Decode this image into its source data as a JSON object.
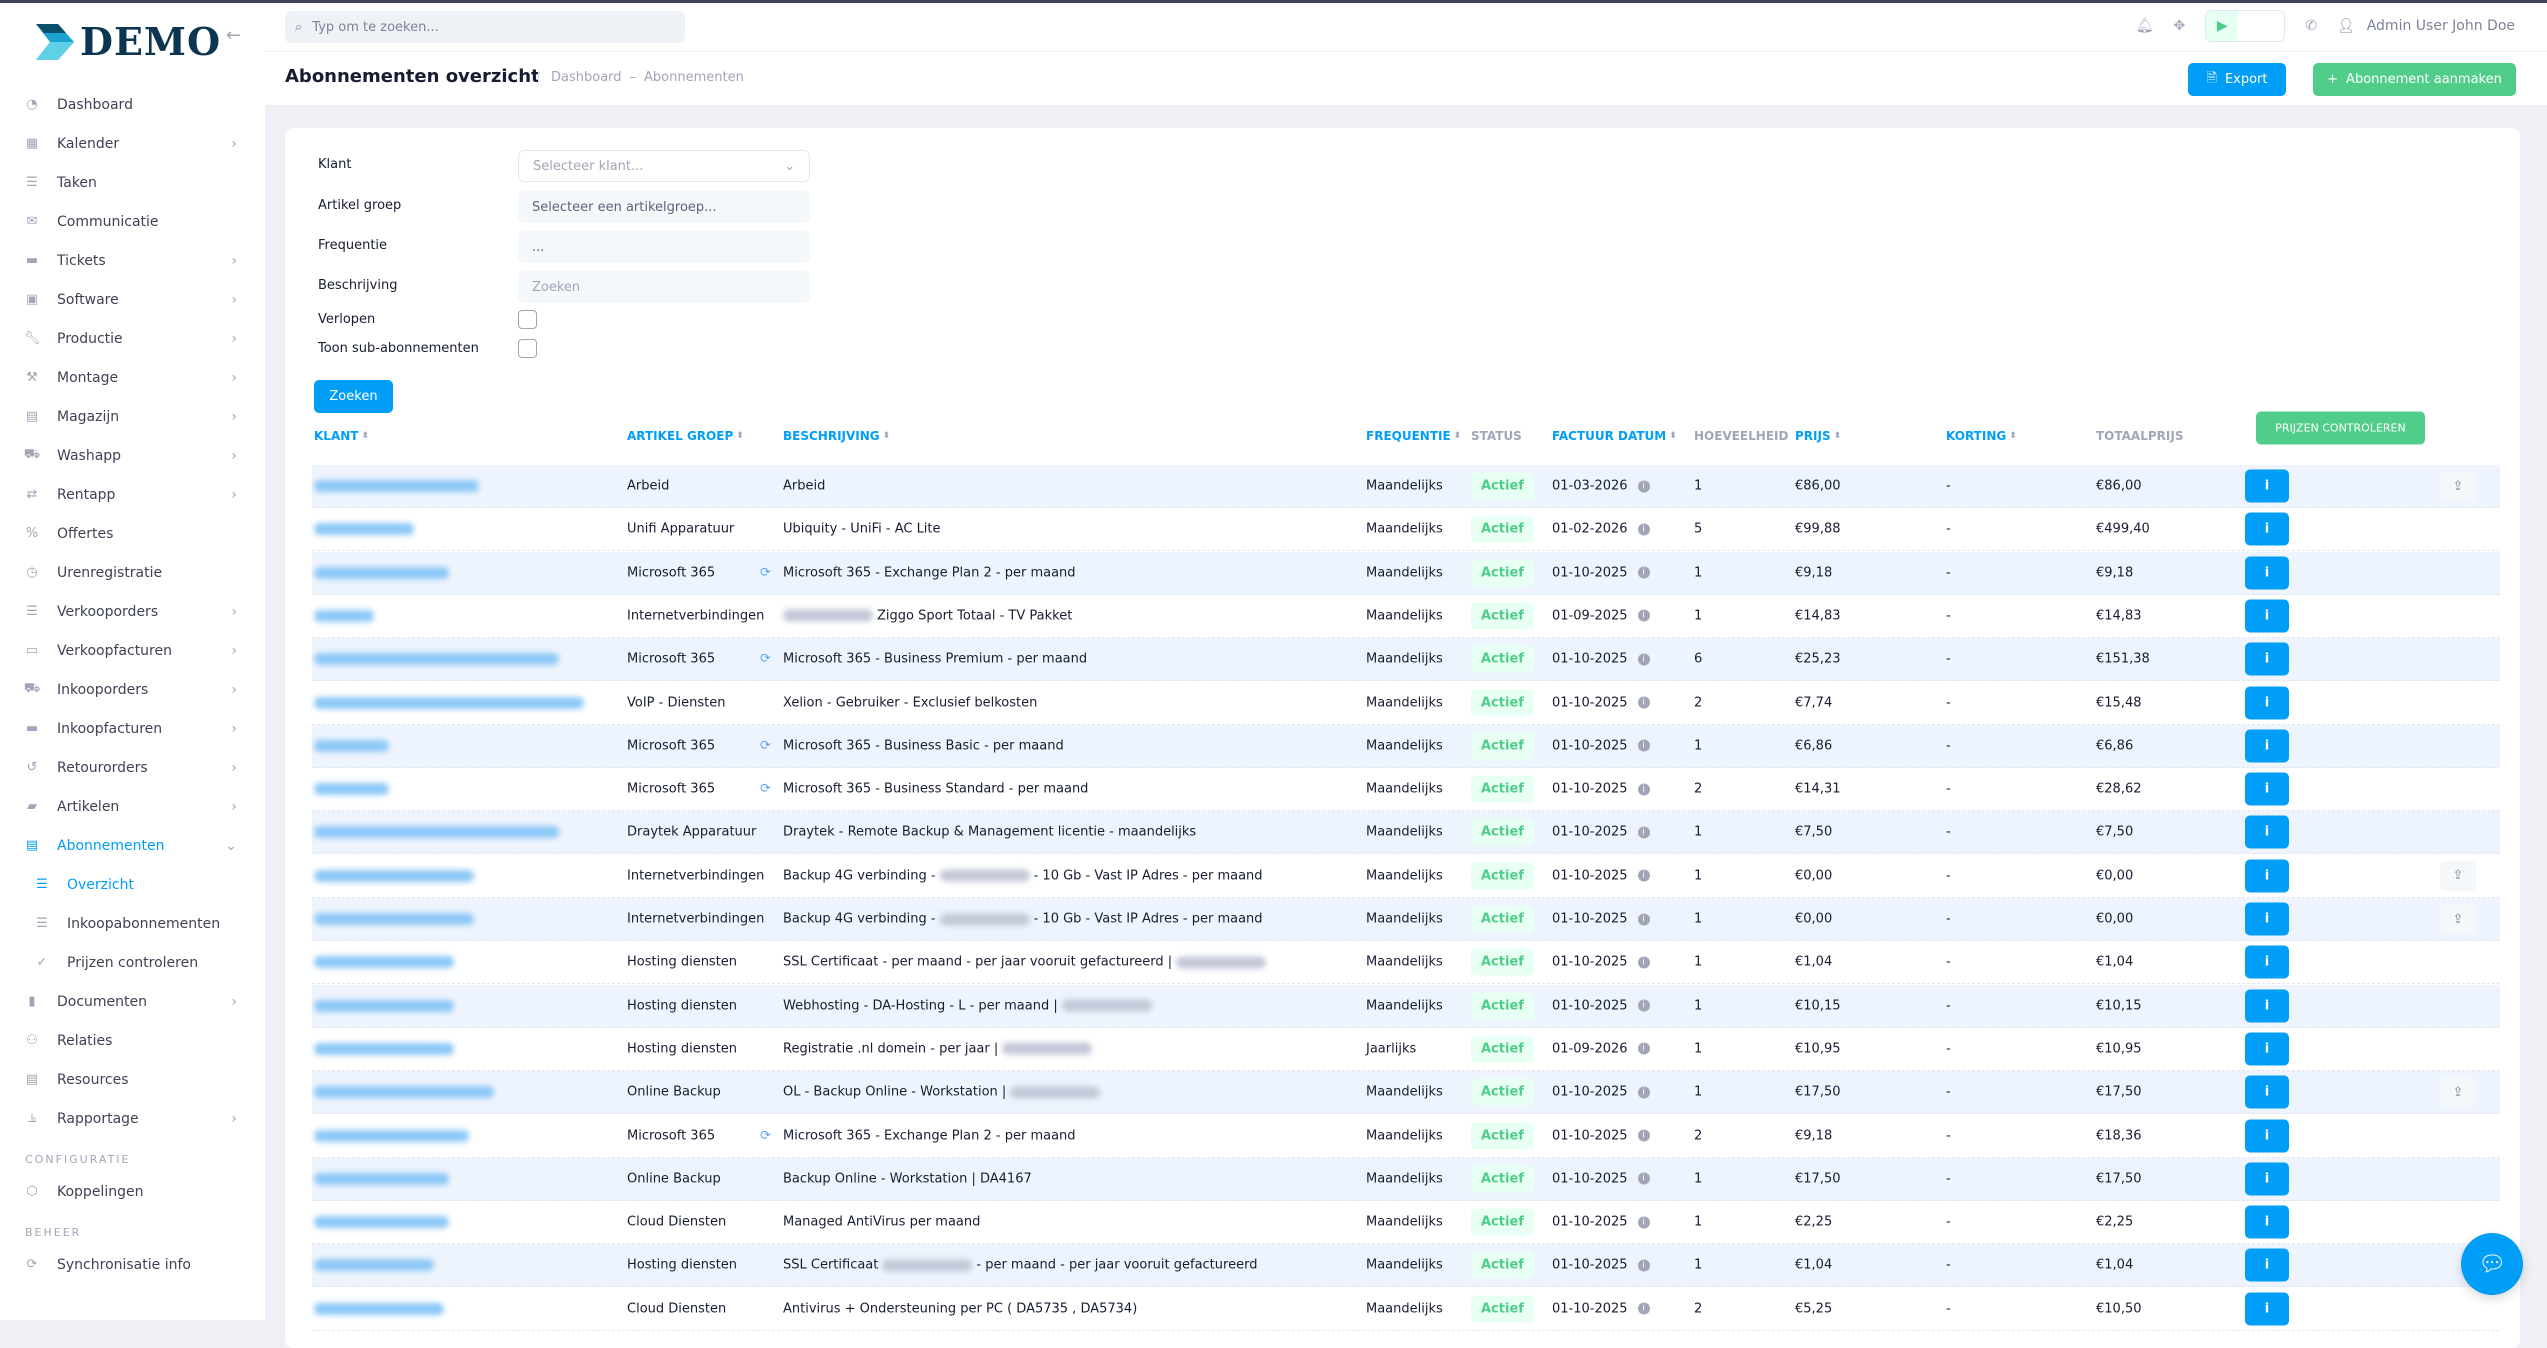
{
  "app": {
    "logo_text": "DEMO"
  },
  "topbar": {
    "search_placeholder": "Typ om te zoeken...",
    "user_name": "Admin User John Doe"
  },
  "page": {
    "title": "Abonnementen overzicht",
    "breadcrumb": [
      "Dashboard",
      "Abonnementen"
    ],
    "export_label": "Export",
    "create_label": "Abonnement aanmaken"
  },
  "sidebar": {
    "items": [
      {
        "label": "Dashboard",
        "icon": "dashboard-icon",
        "chevron": false
      },
      {
        "label": "Kalender",
        "icon": "calendar-icon",
        "chevron": true
      },
      {
        "label": "Taken",
        "icon": "tasks-icon",
        "chevron": false
      },
      {
        "label": "Communicatie",
        "icon": "envelope-icon",
        "chevron": false
      },
      {
        "label": "Tickets",
        "icon": "ticket-icon",
        "chevron": true
      },
      {
        "label": "Software",
        "icon": "software-icon",
        "chevron": true
      },
      {
        "label": "Productie",
        "icon": "wrench-icon",
        "chevron": true
      },
      {
        "label": "Montage",
        "icon": "tool-icon",
        "chevron": true
      },
      {
        "label": "Magazijn",
        "icon": "warehouse-icon",
        "chevron": true
      },
      {
        "label": "Washapp",
        "icon": "car-icon",
        "chevron": true
      },
      {
        "label": "Rentapp",
        "icon": "exchange-icon",
        "chevron": true
      },
      {
        "label": "Offertes",
        "icon": "percent-icon",
        "chevron": false
      },
      {
        "label": "Urenregistratie",
        "icon": "clock-icon",
        "chevron": false
      },
      {
        "label": "Verkooporders",
        "icon": "list-icon",
        "chevron": true
      },
      {
        "label": "Verkoopfacturen",
        "icon": "money-icon",
        "chevron": true
      },
      {
        "label": "Inkooporders",
        "icon": "truck-icon",
        "chevron": true
      },
      {
        "label": "Inkoopfacturen",
        "icon": "invoice-icon",
        "chevron": true
      },
      {
        "label": "Retourorders",
        "icon": "undo-icon",
        "chevron": true
      },
      {
        "label": "Artikelen",
        "icon": "bag-icon",
        "chevron": true
      },
      {
        "label": "Abonnementen",
        "icon": "subscription-icon",
        "chevron": true,
        "expanded": true,
        "active": true
      },
      {
        "label": "Overzicht",
        "icon": "list-icon",
        "sub": true,
        "active": true
      },
      {
        "label": "Inkoopabonnementen",
        "icon": "list-icon",
        "sub": true
      },
      {
        "label": "Prijzen controleren",
        "icon": "check-icon",
        "sub": true
      },
      {
        "label": "Documenten",
        "icon": "book-icon",
        "chevron": true
      },
      {
        "label": "Relaties",
        "icon": "users-icon",
        "chevron": false
      },
      {
        "label": "Resources",
        "icon": "table-icon",
        "chevron": false
      },
      {
        "label": "Rapportage",
        "icon": "chart-icon",
        "chevron": true
      },
      {
        "section": "CONFIGURATIE"
      },
      {
        "label": "Koppelingen",
        "icon": "integration-icon",
        "chevron": false
      },
      {
        "section": "BEHEER"
      },
      {
        "label": "Synchronisatie info",
        "icon": "sync-icon",
        "chevron": false
      }
    ]
  },
  "filters": {
    "klant_label": "Klant",
    "klant_placeholder": "Selecteer klant...",
    "artikelgroep_label": "Artikel groep",
    "artikelgroep_value": "Selecteer een artikelgroep...",
    "frequentie_label": "Frequentie",
    "frequentie_value": "...",
    "beschrijving_label": "Beschrijving",
    "beschrijving_placeholder": "Zoeken",
    "verlopen_label": "Verlopen",
    "verlopen_checked": false,
    "sub_label": "Toon sub-abonnementen",
    "sub_checked": false,
    "search_button": "Zoeken"
  },
  "table": {
    "headers": {
      "klant": "KLANT",
      "artikel_groep": "ARTIKEL GROEP",
      "beschrijving": "BESCHRIJVING",
      "frequentie": "FREQUENTIE",
      "status": "STATUS",
      "factuur_datum": "FACTUUR DATUM",
      "hoeveelheid": "HOEVEELHEID",
      "prijs": "PRIJS",
      "korting": "KORTING",
      "totaalprijs": "TOTAALPRIJS"
    },
    "check_prices_button": "PRIJZEN CONTROLEREN",
    "rows": [
      {
        "groep": "Arbeid",
        "sync": false,
        "desc": [
          "Arbeid"
        ],
        "freq": "Maandelijks",
        "status": "Actief",
        "datum": "01-03-2026",
        "qty": "1",
        "prijs": "€86,00",
        "korting": "-",
        "totaal": "€86,00",
        "share": true
      },
      {
        "groep": "Unifi Apparatuur",
        "sync": false,
        "desc": [
          "Ubiquity - UniFi - AC Lite"
        ],
        "freq": "Maandelijks",
        "status": "Actief",
        "datum": "01-02-2026",
        "qty": "5",
        "prijs": "€99,88",
        "korting": "-",
        "totaal": "€499,40",
        "share": false
      },
      {
        "groep": "Microsoft 365",
        "sync": true,
        "desc": [
          "Microsoft 365 - Exchange Plan 2 - per maand"
        ],
        "freq": "Maandelijks",
        "status": "Actief",
        "datum": "01-10-2025",
        "qty": "1",
        "prijs": "€9,18",
        "korting": "-",
        "totaal": "€9,18",
        "share": false
      },
      {
        "groep": "Internetverbindingen",
        "sync": false,
        "desc": [
          null,
          "Ziggo Sport Totaal - TV Pakket"
        ],
        "freq": "Maandelijks",
        "status": "Actief",
        "datum": "01-09-2025",
        "qty": "1",
        "prijs": "€14,83",
        "korting": "-",
        "totaal": "€14,83",
        "share": false
      },
      {
        "groep": "Microsoft 365",
        "sync": true,
        "desc": [
          "Microsoft 365 - Business Premium - per maand"
        ],
        "freq": "Maandelijks",
        "status": "Actief",
        "datum": "01-10-2025",
        "qty": "6",
        "prijs": "€25,23",
        "korting": "-",
        "totaal": "€151,38",
        "share": false
      },
      {
        "groep": "VoIP - Diensten",
        "sync": false,
        "desc": [
          "Xelion - Gebruiker - Exclusief belkosten"
        ],
        "freq": "Maandelijks",
        "status": "Actief",
        "datum": "01-10-2025",
        "qty": "2",
        "prijs": "€7,74",
        "korting": "-",
        "totaal": "€15,48",
        "share": false
      },
      {
        "groep": "Microsoft 365",
        "sync": true,
        "desc": [
          "Microsoft 365 - Business Basic - per maand"
        ],
        "freq": "Maandelijks",
        "status": "Actief",
        "datum": "01-10-2025",
        "qty": "1",
        "prijs": "€6,86",
        "korting": "-",
        "totaal": "€6,86",
        "share": false
      },
      {
        "groep": "Microsoft 365",
        "sync": true,
        "desc": [
          "Microsoft 365 - Business Standard - per maand"
        ],
        "freq": "Maandelijks",
        "status": "Actief",
        "datum": "01-10-2025",
        "qty": "2",
        "prijs": "€14,31",
        "korting": "-",
        "totaal": "€28,62",
        "share": false
      },
      {
        "groep": "Draytek Apparatuur",
        "sync": false,
        "desc": [
          "Draytek - Remote Backup & Management licentie - maandelijks"
        ],
        "freq": "Maandelijks",
        "status": "Actief",
        "datum": "01-10-2025",
        "qty": "1",
        "prijs": "€7,50",
        "korting": "-",
        "totaal": "€7,50",
        "share": false
      },
      {
        "groep": "Internetverbindingen",
        "sync": false,
        "desc": [
          "Backup 4G verbinding -",
          null,
          "- 10 Gb - Vast IP Adres - per maand"
        ],
        "freq": "Maandelijks",
        "status": "Actief",
        "datum": "01-10-2025",
        "qty": "1",
        "prijs": "€0,00",
        "korting": "-",
        "totaal": "€0,00",
        "share": true
      },
      {
        "groep": "Internetverbindingen",
        "sync": false,
        "desc": [
          "Backup 4G verbinding -",
          null,
          "- 10 Gb - Vast IP Adres - per maand"
        ],
        "freq": "Maandelijks",
        "status": "Actief",
        "datum": "01-10-2025",
        "qty": "1",
        "prijs": "€0,00",
        "korting": "-",
        "totaal": "€0,00",
        "share": true
      },
      {
        "groep": "Hosting diensten",
        "sync": false,
        "desc": [
          "SSL Certificaat - per maand - per jaar vooruit gefactureerd |",
          null
        ],
        "freq": "Maandelijks",
        "status": "Actief",
        "datum": "01-10-2025",
        "qty": "1",
        "prijs": "€1,04",
        "korting": "-",
        "totaal": "€1,04",
        "share": false
      },
      {
        "groep": "Hosting diensten",
        "sync": false,
        "desc": [
          "Webhosting - DA-Hosting - L - per maand |",
          null
        ],
        "freq": "Maandelijks",
        "status": "Actief",
        "datum": "01-10-2025",
        "qty": "1",
        "prijs": "€10,15",
        "korting": "-",
        "totaal": "€10,15",
        "share": false
      },
      {
        "groep": "Hosting diensten",
        "sync": false,
        "desc": [
          "Registratie .nl domein - per jaar |",
          null
        ],
        "freq": "Jaarlijks",
        "status": "Actief",
        "datum": "01-09-2026",
        "qty": "1",
        "prijs": "€10,95",
        "korting": "-",
        "totaal": "€10,95",
        "share": false
      },
      {
        "groep": "Online Backup",
        "sync": false,
        "desc": [
          "OL - Backup Online - Workstation |",
          null
        ],
        "freq": "Maandelijks",
        "status": "Actief",
        "datum": "01-10-2025",
        "qty": "1",
        "prijs": "€17,50",
        "korting": "-",
        "totaal": "€17,50",
        "share": true
      },
      {
        "groep": "Microsoft 365",
        "sync": true,
        "desc": [
          "Microsoft 365 - Exchange Plan 2 - per maand"
        ],
        "freq": "Maandelijks",
        "status": "Actief",
        "datum": "01-10-2025",
        "qty": "2",
        "prijs": "€9,18",
        "korting": "-",
        "totaal": "€18,36",
        "share": false
      },
      {
        "groep": "Online Backup",
        "sync": false,
        "desc": [
          "Backup Online - Workstation | DA4167"
        ],
        "freq": "Maandelijks",
        "status": "Actief",
        "datum": "01-10-2025",
        "qty": "1",
        "prijs": "€17,50",
        "korting": "-",
        "totaal": "€17,50",
        "share": false
      },
      {
        "groep": "Cloud Diensten",
        "sync": false,
        "desc": [
          "Managed AntiVirus per maand"
        ],
        "freq": "Maandelijks",
        "status": "Actief",
        "datum": "01-10-2025",
        "qty": "1",
        "prijs": "€2,25",
        "korting": "-",
        "totaal": "€2,25",
        "share": false
      },
      {
        "groep": "Hosting diensten",
        "sync": false,
        "desc": [
          "SSL Certificaat",
          null,
          "- per maand - per jaar vooruit gefactureerd"
        ],
        "freq": "Maandelijks",
        "status": "Actief",
        "datum": "01-10-2025",
        "qty": "1",
        "prijs": "€1,04",
        "korting": "-",
        "totaal": "€1,04",
        "share": false
      },
      {
        "groep": "Cloud Diensten",
        "sync": false,
        "desc": [
          "Antivirus + Ondersteuning per PC ( DA5735 , DA5734)"
        ],
        "freq": "Maandelijks",
        "status": "Actief",
        "datum": "01-10-2025",
        "qty": "2",
        "prijs": "€5,25",
        "korting": "-",
        "totaal": "€10,50",
        "share": false
      }
    ]
  },
  "colors": {
    "primary": "#009ef7",
    "success": "#50cd89",
    "row_alt": "#eef4fd"
  }
}
